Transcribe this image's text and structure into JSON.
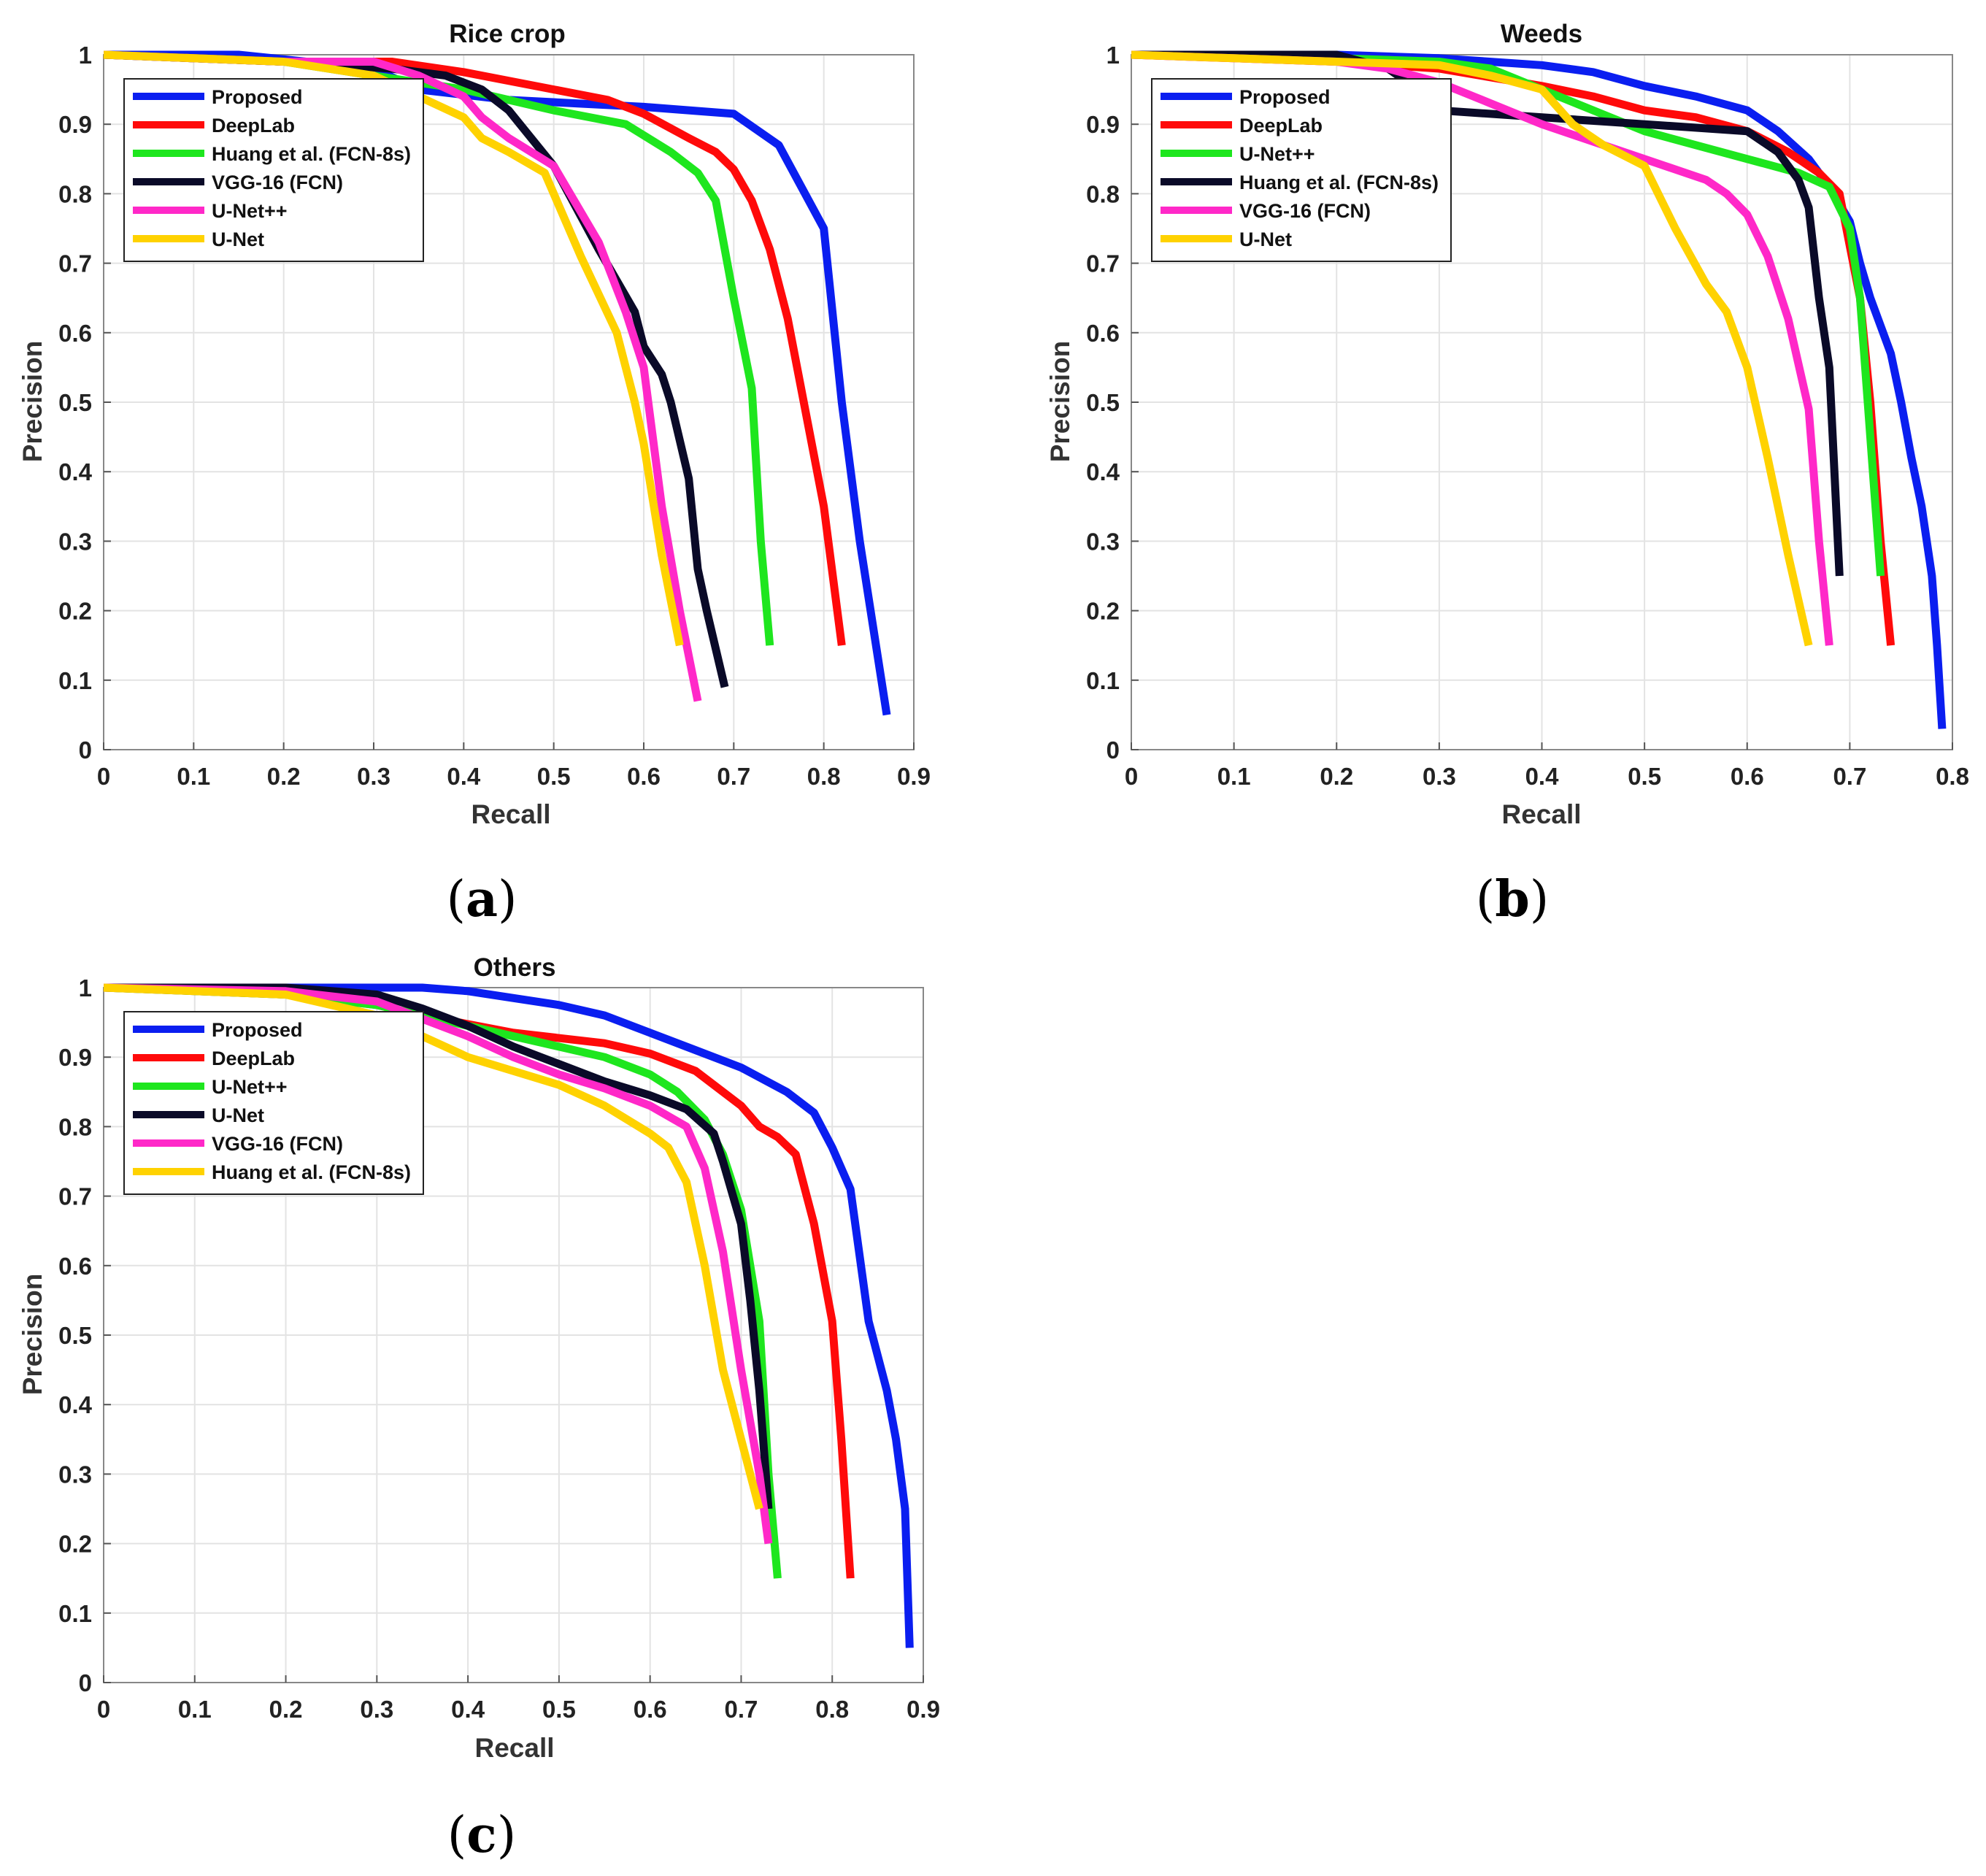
{
  "captions": [
    "a",
    "b",
    "c"
  ],
  "chart_data": [
    {
      "id": "a",
      "type": "line",
      "title": "Rice crop",
      "xlabel": "Recall",
      "ylabel": "Precision",
      "xlim": [
        0,
        0.9
      ],
      "ylim": [
        0,
        1
      ],
      "xticks": [
        0,
        0.1,
        0.2,
        0.3,
        0.4,
        0.5,
        0.6,
        0.7,
        0.8,
        0.9
      ],
      "xtick_labels": [
        "0",
        "0.1",
        "0.2",
        "0.3",
        "0.4",
        "0.5",
        "0.6",
        "0.7",
        "0.8",
        "0.9"
      ],
      "yticks": [
        0,
        0.1,
        0.2,
        0.3,
        0.4,
        0.5,
        0.6,
        0.7,
        0.8,
        0.9,
        1
      ],
      "ytick_labels": [
        "0",
        "0.1",
        "0.2",
        "0.3",
        "0.4",
        "0.5",
        "0.6",
        "0.7",
        "0.8",
        "0.9",
        "1"
      ],
      "grid": true,
      "legend_location": "top-left",
      "series": [
        {
          "name": "Proposed",
          "color": "#0a1ef0",
          "x": [
            0,
            0.15,
            0.3,
            0.35,
            0.45,
            0.6,
            0.7,
            0.75,
            0.8,
            0.82,
            0.84,
            0.87
          ],
          "y": [
            1,
            1,
            0.98,
            0.95,
            0.935,
            0.925,
            0.915,
            0.87,
            0.75,
            0.5,
            0.3,
            0.05
          ]
        },
        {
          "name": "DeepLab",
          "color": "#ff0a0a",
          "x": [
            0,
            0.2,
            0.32,
            0.4,
            0.5,
            0.56,
            0.6,
            0.65,
            0.68,
            0.7,
            0.72,
            0.74,
            0.76,
            0.8,
            0.82
          ],
          "y": [
            1,
            0.99,
            0.99,
            0.975,
            0.95,
            0.935,
            0.915,
            0.88,
            0.86,
            0.835,
            0.79,
            0.72,
            0.62,
            0.35,
            0.15
          ]
        },
        {
          "name": "Huang et al. (FCN-8s)",
          "color": "#1ee61e",
          "x": [
            0,
            0.2,
            0.3,
            0.4,
            0.5,
            0.58,
            0.63,
            0.66,
            0.68,
            0.7,
            0.72,
            0.73,
            0.74
          ],
          "y": [
            1,
            0.99,
            0.97,
            0.95,
            0.92,
            0.9,
            0.86,
            0.83,
            0.79,
            0.65,
            0.52,
            0.3,
            0.15
          ]
        },
        {
          "name": "VGG-16 (FCN)",
          "color": "#0a0a28",
          "x": [
            0,
            0.2,
            0.32,
            0.38,
            0.42,
            0.45,
            0.5,
            0.55,
            0.59,
            0.6,
            0.62,
            0.63,
            0.65,
            0.66,
            0.67,
            0.69
          ],
          "y": [
            1,
            0.99,
            0.98,
            0.97,
            0.95,
            0.92,
            0.84,
            0.72,
            0.63,
            0.58,
            0.54,
            0.5,
            0.39,
            0.26,
            0.2,
            0.09
          ]
        },
        {
          "name": "U-Net++",
          "color": "#ff28c8",
          "x": [
            0,
            0.2,
            0.3,
            0.35,
            0.4,
            0.42,
            0.45,
            0.5,
            0.55,
            0.58,
            0.6,
            0.62,
            0.64,
            0.66
          ],
          "y": [
            1,
            0.99,
            0.99,
            0.97,
            0.94,
            0.91,
            0.88,
            0.84,
            0.73,
            0.63,
            0.55,
            0.35,
            0.2,
            0.07
          ]
        },
        {
          "name": "U-Net",
          "color": "#ffd200",
          "x": [
            0,
            0.2,
            0.3,
            0.35,
            0.4,
            0.42,
            0.45,
            0.49,
            0.53,
            0.57,
            0.59,
            0.6,
            0.62,
            0.64
          ],
          "y": [
            1,
            0.99,
            0.97,
            0.94,
            0.91,
            0.88,
            0.86,
            0.83,
            0.71,
            0.6,
            0.5,
            0.44,
            0.28,
            0.15
          ]
        }
      ]
    },
    {
      "id": "b",
      "type": "line",
      "title": "Weeds",
      "xlabel": "Recall",
      "ylabel": "Precision",
      "xlim": [
        0,
        0.8
      ],
      "ylim": [
        0,
        1
      ],
      "xticks": [
        0,
        0.1,
        0.2,
        0.3,
        0.4,
        0.5,
        0.6,
        0.7,
        0.8
      ],
      "xtick_labels": [
        "0",
        "0.1",
        "0.2",
        "0.3",
        "0.4",
        "0.5",
        "0.6",
        "0.7",
        "0.8"
      ],
      "yticks": [
        0,
        0.1,
        0.2,
        0.3,
        0.4,
        0.5,
        0.6,
        0.7,
        0.8,
        0.9,
        1
      ],
      "ytick_labels": [
        "0",
        "0.1",
        "0.2",
        "0.3",
        "0.4",
        "0.5",
        "0.6",
        "0.7",
        "0.8",
        "0.9",
        "1"
      ],
      "grid": true,
      "legend_location": "top-left",
      "series": [
        {
          "name": "Proposed",
          "color": "#0a1ef0",
          "x": [
            0,
            0.2,
            0.3,
            0.4,
            0.45,
            0.5,
            0.55,
            0.6,
            0.63,
            0.66,
            0.68,
            0.7,
            0.71,
            0.72,
            0.74,
            0.75,
            0.76,
            0.77,
            0.78,
            0.785,
            0.79
          ],
          "y": [
            1,
            1,
            0.995,
            0.985,
            0.975,
            0.955,
            0.94,
            0.92,
            0.89,
            0.85,
            0.81,
            0.76,
            0.7,
            0.65,
            0.57,
            0.5,
            0.42,
            0.35,
            0.25,
            0.15,
            0.03
          ]
        },
        {
          "name": "DeepLab",
          "color": "#ff0a0a",
          "x": [
            0,
            0.2,
            0.3,
            0.4,
            0.45,
            0.5,
            0.55,
            0.6,
            0.64,
            0.67,
            0.69,
            0.71,
            0.72,
            0.73,
            0.74
          ],
          "y": [
            1,
            0.99,
            0.98,
            0.955,
            0.94,
            0.92,
            0.91,
            0.89,
            0.86,
            0.83,
            0.8,
            0.65,
            0.5,
            0.3,
            0.15
          ]
        },
        {
          "name": "U-Net++",
          "color": "#1ee61e",
          "x": [
            0,
            0.2,
            0.3,
            0.35,
            0.4,
            0.45,
            0.5,
            0.55,
            0.6,
            0.65,
            0.68,
            0.7,
            0.71,
            0.72,
            0.73
          ],
          "y": [
            1,
            0.995,
            0.99,
            0.98,
            0.95,
            0.92,
            0.89,
            0.87,
            0.85,
            0.83,
            0.81,
            0.75,
            0.65,
            0.45,
            0.25
          ]
        },
        {
          "name": "Huang et al. (FCN-8s)",
          "color": "#0a0a28",
          "x": [
            0,
            0.1,
            0.2,
            0.25,
            0.28,
            0.3,
            0.4,
            0.5,
            0.6,
            0.63,
            0.65,
            0.66,
            0.67,
            0.68,
            0.69
          ],
          "y": [
            1,
            1,
            1,
            0.98,
            0.95,
            0.92,
            0.91,
            0.9,
            0.89,
            0.86,
            0.82,
            0.78,
            0.65,
            0.55,
            0.25
          ]
        },
        {
          "name": "VGG-16 (FCN)",
          "color": "#ff28c8",
          "x": [
            0,
            0.1,
            0.2,
            0.25,
            0.3,
            0.35,
            0.4,
            0.5,
            0.56,
            0.58,
            0.6,
            0.62,
            0.64,
            0.66,
            0.67,
            0.68
          ],
          "y": [
            1,
            0.995,
            0.99,
            0.98,
            0.96,
            0.93,
            0.9,
            0.85,
            0.82,
            0.8,
            0.77,
            0.71,
            0.62,
            0.49,
            0.3,
            0.15
          ]
        },
        {
          "name": "U-Net",
          "color": "#ffd200",
          "x": [
            0,
            0.1,
            0.2,
            0.3,
            0.35,
            0.4,
            0.43,
            0.46,
            0.5,
            0.53,
            0.56,
            0.58,
            0.6,
            0.62,
            0.64,
            0.66
          ],
          "y": [
            1,
            0.995,
            0.99,
            0.985,
            0.97,
            0.95,
            0.9,
            0.87,
            0.84,
            0.75,
            0.67,
            0.63,
            0.55,
            0.42,
            0.28,
            0.15
          ]
        }
      ]
    },
    {
      "id": "c",
      "type": "line",
      "title": "Others",
      "xlabel": "Recall",
      "ylabel": "Precision",
      "xlim": [
        0,
        0.9
      ],
      "ylim": [
        0,
        1
      ],
      "xticks": [
        0,
        0.1,
        0.2,
        0.3,
        0.4,
        0.5,
        0.6,
        0.7,
        0.8,
        0.9
      ],
      "xtick_labels": [
        "0",
        "0.1",
        "0.2",
        "0.3",
        "0.4",
        "0.5",
        "0.6",
        "0.7",
        "0.8",
        "0.9"
      ],
      "yticks": [
        0,
        0.1,
        0.2,
        0.3,
        0.4,
        0.5,
        0.6,
        0.7,
        0.8,
        0.9,
        1
      ],
      "ytick_labels": [
        "0",
        "0.1",
        "0.2",
        "0.3",
        "0.4",
        "0.5",
        "0.6",
        "0.7",
        "0.8",
        "0.9",
        "1"
      ],
      "grid": true,
      "legend_location": "top-left",
      "series": [
        {
          "name": "Proposed",
          "color": "#0a1ef0",
          "x": [
            0,
            0.2,
            0.3,
            0.35,
            0.4,
            0.45,
            0.5,
            0.55,
            0.6,
            0.65,
            0.7,
            0.75,
            0.78,
            0.8,
            0.82,
            0.84,
            0.86,
            0.87,
            0.88,
            0.885
          ],
          "y": [
            1,
            1,
            1,
            1,
            0.995,
            0.985,
            0.975,
            0.96,
            0.935,
            0.91,
            0.885,
            0.85,
            0.82,
            0.77,
            0.71,
            0.52,
            0.42,
            0.35,
            0.25,
            0.05
          ]
        },
        {
          "name": "DeepLab",
          "color": "#ff0a0a",
          "x": [
            0,
            0.2,
            0.3,
            0.35,
            0.45,
            0.55,
            0.6,
            0.65,
            0.67,
            0.7,
            0.72,
            0.74,
            0.76,
            0.78,
            0.8,
            0.81,
            0.82
          ],
          "y": [
            1,
            0.99,
            0.975,
            0.96,
            0.935,
            0.92,
            0.905,
            0.88,
            0.86,
            0.83,
            0.8,
            0.785,
            0.76,
            0.66,
            0.52,
            0.35,
            0.15
          ]
        },
        {
          "name": "U-Net++",
          "color": "#1ee61e",
          "x": [
            0,
            0.2,
            0.3,
            0.35,
            0.4,
            0.45,
            0.5,
            0.55,
            0.6,
            0.63,
            0.66,
            0.68,
            0.7,
            0.72,
            0.73,
            0.74
          ],
          "y": [
            1,
            0.99,
            0.975,
            0.96,
            0.945,
            0.93,
            0.915,
            0.9,
            0.875,
            0.85,
            0.81,
            0.76,
            0.68,
            0.52,
            0.3,
            0.15
          ]
        },
        {
          "name": "U-Net",
          "color": "#0a0a28",
          "x": [
            0,
            0.2,
            0.3,
            0.35,
            0.4,
            0.45,
            0.5,
            0.55,
            0.6,
            0.64,
            0.67,
            0.68,
            0.7,
            0.71,
            0.72,
            0.73
          ],
          "y": [
            1,
            1,
            0.99,
            0.97,
            0.945,
            0.915,
            0.89,
            0.865,
            0.845,
            0.825,
            0.79,
            0.75,
            0.66,
            0.55,
            0.42,
            0.25
          ]
        },
        {
          "name": "VGG-16 (FCN)",
          "color": "#ff28c8",
          "x": [
            0,
            0.2,
            0.3,
            0.35,
            0.4,
            0.45,
            0.5,
            0.55,
            0.6,
            0.64,
            0.66,
            0.68,
            0.7,
            0.72,
            0.73
          ],
          "y": [
            1,
            0.995,
            0.98,
            0.955,
            0.93,
            0.9,
            0.875,
            0.855,
            0.83,
            0.8,
            0.74,
            0.62,
            0.45,
            0.3,
            0.2
          ]
        },
        {
          "name": "Huang et al. (FCN-8s)",
          "color": "#ffd200",
          "x": [
            0,
            0.2,
            0.3,
            0.35,
            0.4,
            0.45,
            0.5,
            0.55,
            0.6,
            0.62,
            0.64,
            0.66,
            0.68,
            0.7,
            0.72
          ],
          "y": [
            1,
            0.99,
            0.96,
            0.93,
            0.9,
            0.88,
            0.86,
            0.83,
            0.79,
            0.77,
            0.72,
            0.6,
            0.45,
            0.35,
            0.25
          ]
        }
      ]
    }
  ]
}
